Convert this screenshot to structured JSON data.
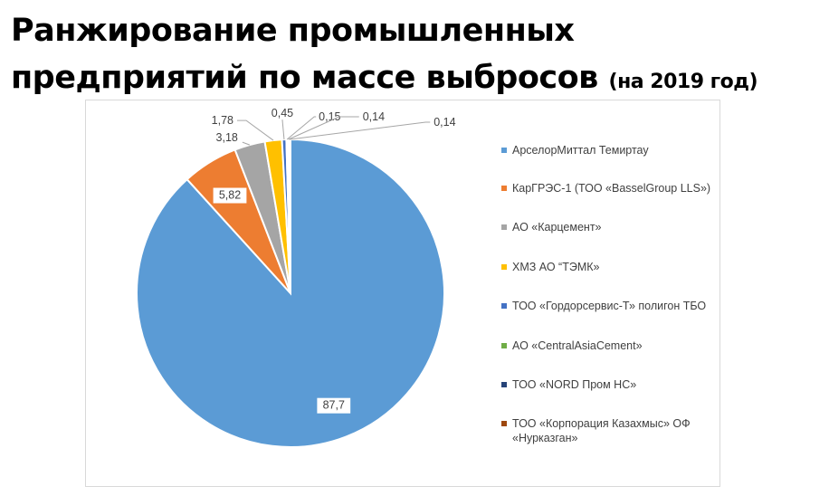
{
  "title": {
    "line1": "Ранжирование промышленных",
    "line2": "предприятий по массе выбросов",
    "suffix": "(на 2019 год)"
  },
  "chart_data": {
    "type": "pie",
    "title": "",
    "values": [
      87.7,
      5.82,
      3.18,
      1.78,
      0.45,
      0.15,
      0.14,
      0.14
    ],
    "labels": [
      "87,7",
      "5,82",
      "3,18",
      "1,78",
      "0,45",
      "0,15",
      "0,14",
      "0,14"
    ],
    "categories": [
      "АрселорМиттал Темиртау",
      "КарГРЭС-1 (ТОО «BasselGroup LLS»)",
      "АО «Карцемент»",
      "ХМЗ АО “ТЭМК»",
      "ТОО «Гордорсервис-Т» полигон ТБО",
      "АО «CentralAsiaCement»",
      "ТОО «NORD Пром НС»",
      "ТОО «Корпорация Казахмыс» ОФ «Нурказган»"
    ],
    "colors": [
      "#5b9bd5",
      "#ed7d31",
      "#a5a5a5",
      "#ffc000",
      "#4472c4",
      "#70ad47",
      "#264478",
      "#9e480e"
    ],
    "legend_position": "right"
  }
}
